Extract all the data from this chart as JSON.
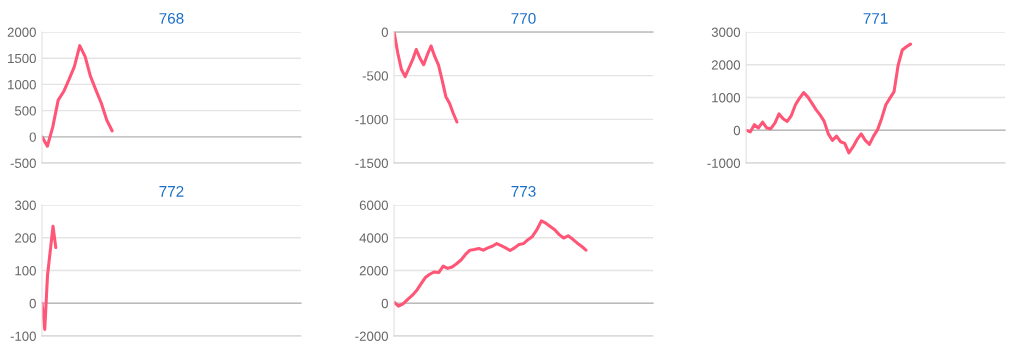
{
  "chart_data": [
    {
      "type": "line",
      "title": "768",
      "categories": [
        null,
        null,
        null,
        null,
        null,
        null,
        null,
        null,
        null,
        null,
        null,
        null,
        null,
        null,
        null,
        null,
        null,
        null,
        null,
        null,
        null,
        null,
        null,
        null,
        null,
        null,
        null,
        null,
        null,
        null,
        null,
        null,
        null,
        null,
        null,
        null,
        null,
        null,
        null,
        null,
        null,
        null,
        null,
        null,
        null,
        null,
        null,
        null,
        null
      ],
      "series": [
        {
          "color": "#ff5577",
          "values": [
            0,
            -180,
            190,
            700,
            860,
            1090,
            1340,
            1740,
            1530,
            1150,
            890,
            640,
            320,
            115,
            null,
            null,
            null,
            null,
            null,
            null,
            null,
            null,
            null,
            null,
            null,
            null,
            null,
            null,
            null,
            null,
            null,
            null,
            null,
            null,
            null,
            null,
            null,
            null,
            null,
            null,
            null,
            null,
            null,
            null,
            null,
            null,
            null,
            null,
            null
          ]
        }
      ],
      "ylim": [
        -500,
        2000
      ],
      "yticks": [
        -500,
        0,
        500,
        1000,
        1500,
        2000
      ],
      "grid": "y",
      "tick_labels": "y",
      "marker": "none"
    },
    {
      "type": "line",
      "title": "770",
      "categories": [
        null,
        null,
        null,
        null,
        null,
        null,
        null,
        null,
        null,
        null,
        null,
        null,
        null,
        null,
        null,
        null,
        null,
        null,
        null,
        null,
        null,
        null,
        null,
        null,
        null,
        null,
        null,
        null,
        null,
        null,
        null,
        null,
        null,
        null,
        null,
        null,
        null,
        null,
        null,
        null,
        null,
        null,
        null,
        null,
        null,
        null,
        null,
        null,
        null,
        null,
        null,
        null,
        null,
        null,
        null,
        null,
        null,
        null,
        null,
        null,
        null,
        null,
        null,
        null,
        null,
        null,
        null,
        null,
        null,
        null,
        null
      ],
      "series": [
        {
          "color": "#ff5577",
          "values": [
            0,
            -240,
            -430,
            -510,
            -415,
            -320,
            -200,
            -300,
            -375,
            -260,
            -160,
            -280,
            -375,
            -550,
            -740,
            -815,
            -930,
            -1030,
            null,
            null,
            null,
            null,
            null,
            null,
            null,
            null,
            null,
            null,
            null,
            null,
            null,
            null,
            null,
            null,
            null,
            null,
            null,
            null,
            null,
            null,
            null,
            null,
            null,
            null,
            null,
            null,
            null,
            null,
            null,
            null,
            null,
            null,
            null,
            null,
            null,
            null,
            null,
            null,
            null,
            null,
            null,
            null,
            null,
            null,
            null,
            null,
            null,
            null,
            null,
            null,
            null
          ]
        }
      ],
      "ylim": [
        -1500,
        0
      ],
      "yticks": [
        -1500,
        -1000,
        -500,
        0
      ],
      "grid": "y",
      "tick_labels": "y",
      "marker": "none"
    },
    {
      "type": "line",
      "title": "771",
      "categories": [
        null,
        null,
        null,
        null,
        null,
        null,
        null,
        null,
        null,
        null,
        null,
        null,
        null,
        null,
        null,
        null,
        null,
        null,
        null,
        null,
        null,
        null,
        null,
        null,
        null,
        null,
        null,
        null,
        null,
        null,
        null,
        null,
        null,
        null,
        null,
        null,
        null,
        null,
        null,
        null,
        null,
        null,
        null,
        null,
        null,
        null,
        null,
        null,
        null,
        null,
        null,
        null,
        null,
        null,
        null,
        null,
        null,
        null,
        null,
        null,
        null,
        null,
        null,
        null
      ],
      "series": [
        {
          "color": "#ff5577",
          "values": [
            0,
            -50,
            170,
            70,
            250,
            70,
            50,
            220,
            500,
            350,
            270,
            450,
            780,
            980,
            1150,
            1020,
            830,
            630,
            470,
            270,
            -110,
            -310,
            -180,
            -350,
            -400,
            -690,
            -510,
            -280,
            -110,
            -310,
            -430,
            -180,
            20,
            370,
            780,
            980,
            1180,
            1990,
            2450,
            2550,
            2630,
            null,
            null,
            null,
            null,
            null,
            null,
            null,
            null,
            null,
            null,
            null,
            null,
            null,
            null,
            null,
            null,
            null,
            null,
            null,
            null,
            null,
            null,
            null
          ]
        }
      ],
      "ylim": [
        -1000,
        3000
      ],
      "yticks": [
        -1000,
        0,
        1000,
        2000,
        3000
      ],
      "grid": "y",
      "tick_labels": "y",
      "marker": "none"
    },
    {
      "type": "line",
      "title": "772",
      "categories": [
        null,
        null,
        null,
        null,
        null,
        null,
        null,
        null,
        null,
        null,
        null,
        null,
        null,
        null,
        null,
        null,
        null,
        null,
        null,
        null,
        null,
        null,
        null,
        null,
        null,
        null,
        null,
        null,
        null,
        null,
        null,
        null,
        null,
        null,
        null,
        null,
        null,
        null,
        null,
        null,
        null,
        null,
        null,
        null,
        null,
        null,
        null,
        null,
        null,
        null,
        null,
        null,
        null,
        null,
        null,
        null,
        null,
        null,
        null,
        null,
        null,
        null,
        null,
        null,
        null,
        null,
        null,
        null,
        null,
        null,
        null,
        null,
        null,
        null,
        null,
        null,
        null,
        null,
        null,
        null,
        null,
        null,
        null,
        null,
        null,
        null,
        null,
        null,
        null,
        null,
        null,
        null,
        null,
        null,
        null
      ],
      "series": [
        {
          "color": "#ff5577",
          "values": [
            0,
            -80,
            85,
            160,
            235,
            170,
            null,
            null,
            null,
            null,
            null,
            null,
            null,
            null,
            null,
            null,
            null,
            null,
            null,
            null,
            null,
            null,
            null,
            null,
            null,
            null,
            null,
            null,
            null,
            null,
            null,
            null,
            null,
            null,
            null,
            null,
            null,
            null,
            null,
            null,
            null,
            null,
            null,
            null,
            null,
            null,
            null,
            null,
            null,
            null,
            null,
            null,
            null,
            null,
            null,
            null,
            null,
            null,
            null,
            null,
            null,
            null,
            null,
            null,
            null,
            null,
            null,
            null,
            null,
            null,
            null,
            null,
            null,
            null,
            null,
            null,
            null,
            null,
            null,
            null,
            null,
            null,
            null,
            null,
            null,
            null,
            null,
            null,
            null,
            null,
            null,
            null,
            null,
            null,
            null
          ]
        }
      ],
      "ylim": [
        -100,
        300
      ],
      "yticks": [
        -100,
        0,
        100,
        200,
        300
      ],
      "grid": "y",
      "tick_labels": "y",
      "marker": "none"
    },
    {
      "type": "line",
      "title": "773",
      "categories": [
        null,
        null,
        null,
        null,
        null,
        null,
        null,
        null,
        null,
        null,
        null,
        null,
        null,
        null,
        null,
        null,
        null,
        null,
        null,
        null,
        null,
        null,
        null,
        null,
        null,
        null,
        null,
        null,
        null,
        null,
        null,
        null,
        null,
        null,
        null,
        null,
        null,
        null,
        null,
        null,
        null,
        null,
        null,
        null,
        null,
        null,
        null,
        null,
        null,
        null,
        null,
        null,
        null,
        null,
        null,
        null,
        null,
        null,
        null
      ],
      "series": [
        {
          "color": "#ff5577",
          "values": [
            60,
            -180,
            -40,
            220,
            460,
            760,
            1170,
            1570,
            1770,
            1910,
            1870,
            2270,
            2130,
            2210,
            2410,
            2640,
            2980,
            3240,
            3280,
            3340,
            3240,
            3380,
            3480,
            3640,
            3520,
            3380,
            3220,
            3380,
            3580,
            3640,
            3880,
            4080,
            4490,
            5030,
            4890,
            4690,
            4490,
            4190,
            3980,
            4120,
            3920,
            3680,
            3480,
            3240,
            null,
            null,
            null,
            null,
            null,
            null,
            null,
            null,
            null,
            null,
            null,
            null,
            null,
            null,
            null
          ]
        }
      ],
      "ylim": [
        -2000,
        6000
      ],
      "yticks": [
        -2000,
        0,
        2000,
        4000,
        6000
      ],
      "grid": "y",
      "tick_labels": "y",
      "marker": "none"
    }
  ]
}
